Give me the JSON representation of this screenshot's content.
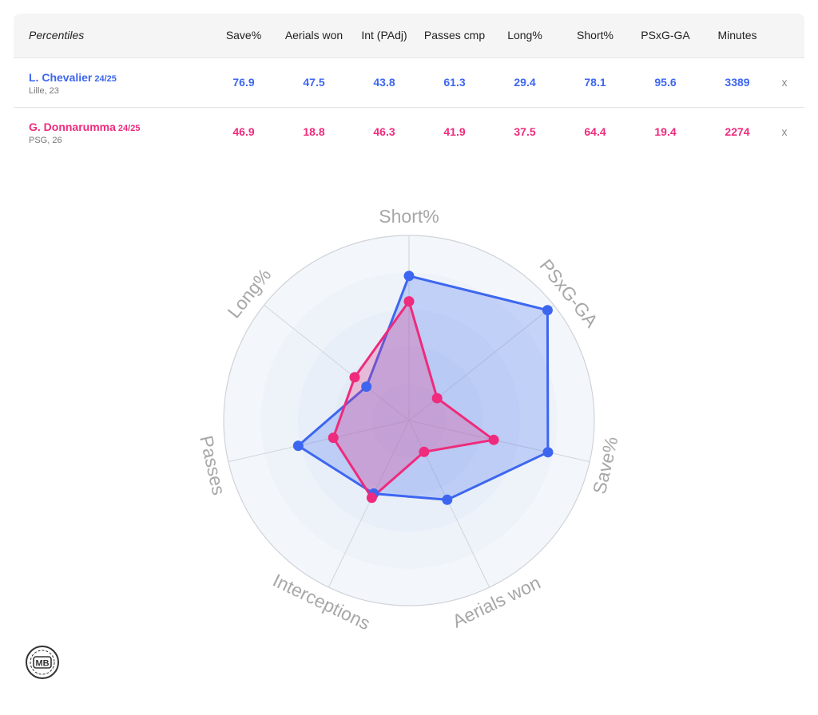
{
  "table": {
    "title": "Percentiles",
    "columns": [
      "Save%",
      "Aerials won",
      "Int (PAdj)",
      "Passes cmp",
      "Long%",
      "Short%",
      "PSxG-GA",
      "Minutes"
    ],
    "remove_label": "x",
    "players": [
      {
        "name": "L. Chevalier",
        "season": "24/25",
        "team_age": "Lille, 23",
        "color": "#3d66f0",
        "values": [
          "76.9",
          "47.5",
          "43.8",
          "61.3",
          "29.4",
          "78.1",
          "95.6",
          "3389"
        ]
      },
      {
        "name": "G. Donnarumma",
        "season": "24/25",
        "team_age": "PSG, 26",
        "color": "#ee2b7c",
        "values": [
          "46.9",
          "18.8",
          "46.3",
          "41.9",
          "37.5",
          "64.4",
          "19.4",
          "2274"
        ]
      }
    ]
  },
  "chart_data": {
    "type": "radar",
    "axes": [
      "Short%",
      "PSxG-GA",
      "Save%",
      "Aerials won",
      "Interceptions",
      "Passes",
      "Long%"
    ],
    "range": [
      0,
      100
    ],
    "series": [
      {
        "name": "L. Chevalier",
        "color": "#3d66f0",
        "values": [
          78.1,
          95.6,
          76.9,
          47.5,
          43.8,
          61.3,
          29.4
        ]
      },
      {
        "name": "G. Donnarumma",
        "color": "#ee2b7c",
        "values": [
          64.4,
          19.4,
          46.9,
          18.8,
          46.3,
          41.9,
          37.5
        ]
      }
    ]
  },
  "logo": {
    "text": "MB"
  }
}
